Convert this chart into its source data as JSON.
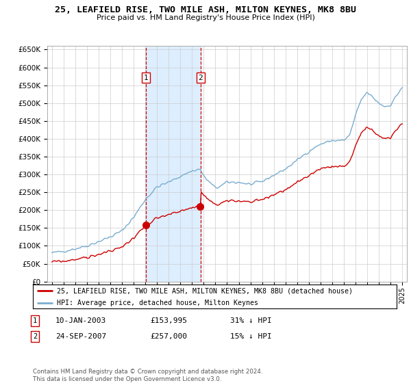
{
  "title": "25, LEAFIELD RISE, TWO MILE ASH, MILTON KEYNES, MK8 8BU",
  "subtitle": "Price paid vs. HM Land Registry's House Price Index (HPI)",
  "legend_line1": "25, LEAFIELD RISE, TWO MILE ASH, MILTON KEYNES, MK8 8BU (detached house)",
  "legend_line2": "HPI: Average price, detached house, Milton Keynes",
  "transaction1_date": "10-JAN-2003",
  "transaction1_price": "£153,995",
  "transaction1_hpi": "31% ↓ HPI",
  "transaction2_date": "24-SEP-2007",
  "transaction2_price": "£257,000",
  "transaction2_hpi": "15% ↓ HPI",
  "footer": "Contains HM Land Registry data © Crown copyright and database right 2024.\nThis data is licensed under the Open Government Licence v3.0.",
  "red_line_color": "#cc0000",
  "blue_line_color": "#7aadcf",
  "background_color": "#ffffff",
  "grid_color": "#cccccc",
  "highlight_color": "#ddeeff",
  "ylim_min": 0,
  "ylim_max": 660000,
  "transaction1_x": 2003.03,
  "transaction2_x": 2007.73
}
